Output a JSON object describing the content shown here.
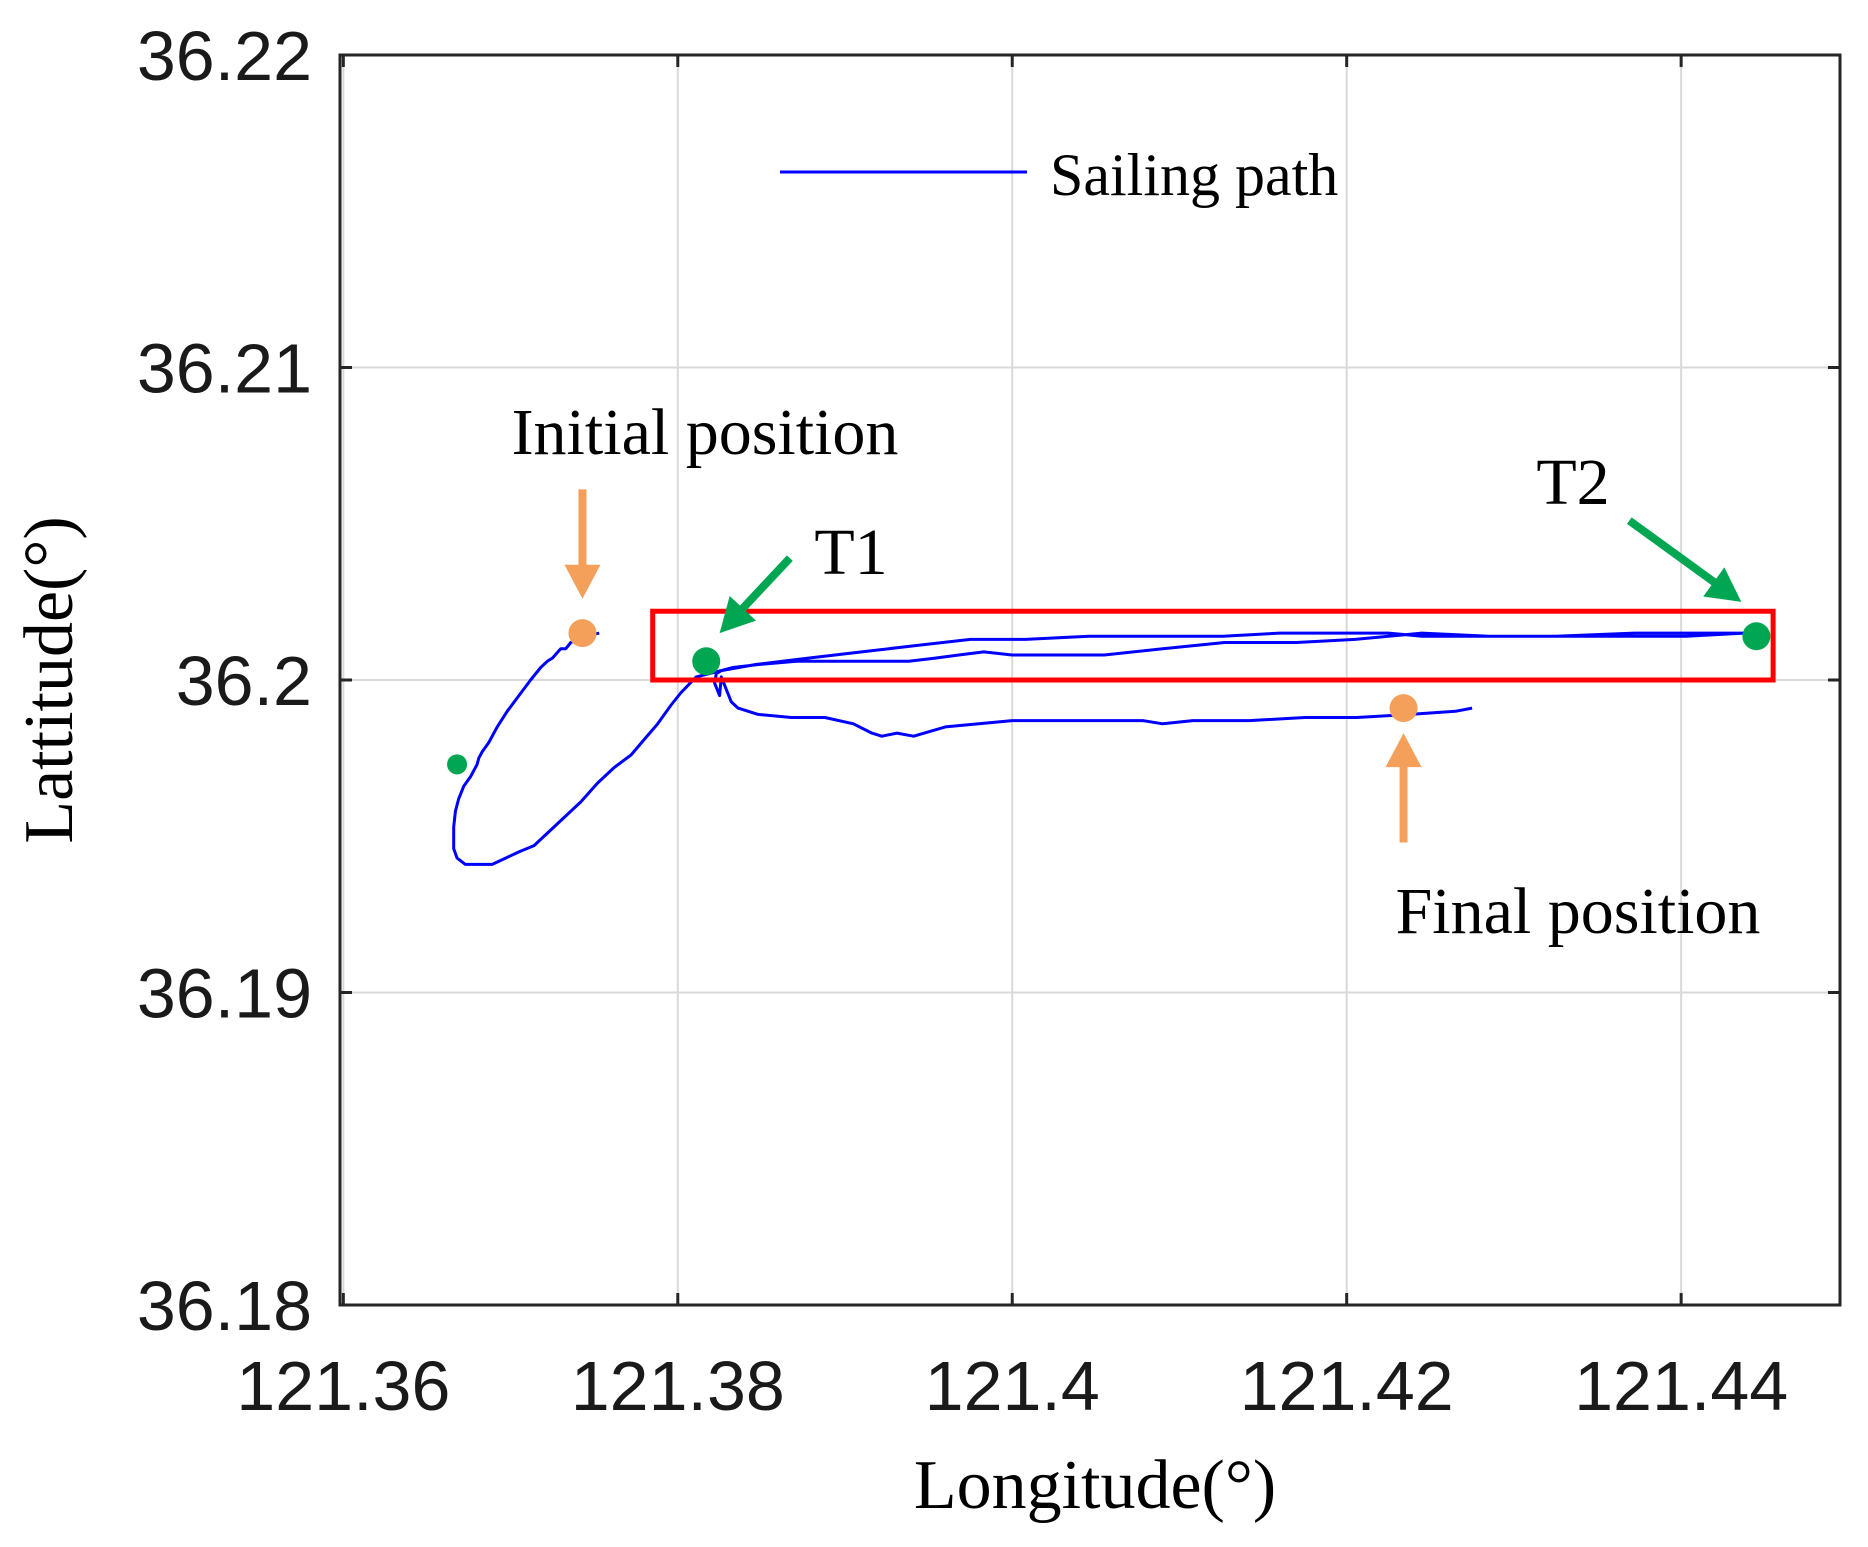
{
  "chart_data": {
    "type": "line",
    "xlabel": "Longitude(°)",
    "ylabel": "Lattitude(°)",
    "xlim": [
      121.3598,
      121.4495
    ],
    "ylim": [
      36.18,
      36.22
    ],
    "x_ticks": [
      121.36,
      121.38,
      121.4,
      121.42,
      121.44
    ],
    "y_ticks": [
      36.18,
      36.19,
      36.2,
      36.21,
      36.22
    ],
    "x_tick_labels": [
      "121.36",
      "121.38",
      "121.4",
      "121.42",
      "121.44"
    ],
    "y_tick_labels": [
      "36.18",
      "36.19",
      "36.2",
      "36.21",
      "36.22"
    ],
    "grid": true,
    "legend": {
      "position": "top-center",
      "entries": [
        {
          "label": "Sailing path",
          "color": "#0000ff"
        }
      ]
    },
    "series": [
      {
        "name": "Sailing path",
        "color": "#0000ff",
        "x": [
          121.3753,
          121.3745,
          121.3736,
          121.3733,
          121.373,
          121.3725,
          121.3722,
          121.3718,
          121.3712,
          121.3705,
          121.3698,
          121.3692,
          121.3687,
          121.3683,
          121.3681,
          121.368,
          121.3678,
          121.3676,
          121.3672,
          121.3669,
          121.3667,
          121.3666,
          121.3666,
          121.3668,
          121.3673,
          121.3681,
          121.3689,
          121.3697,
          121.3705,
          121.3714,
          121.3722,
          121.3732,
          121.3742,
          121.3752,
          121.3762,
          121.3772,
          121.378,
          121.3788,
          121.3796,
          121.3802,
          121.3811,
          121.3826,
          121.3847,
          121.3878,
          121.391,
          121.3942,
          121.3975,
          121.4008,
          121.4046,
          121.4086,
          121.4126,
          121.416,
          121.4195,
          121.4225,
          121.4245,
          121.4268,
          121.4292,
          121.4316,
          121.4343,
          121.4372,
          121.4403,
          121.4438,
          121.4412,
          121.4372,
          121.4325,
          121.4285,
          121.4245,
          121.4205,
          121.417,
          121.4127,
          121.409,
          121.4055,
          121.4023,
          121.4,
          121.3983,
          121.3968,
          121.3954,
          121.3938,
          121.3918,
          121.3895,
          121.3871,
          121.3849,
          121.3833,
          121.3826,
          121.3823,
          121.3822,
          121.3825,
          121.3826,
          121.3829,
          121.3832,
          121.3836,
          121.3848,
          121.3868,
          121.3888,
          121.3905,
          121.3916,
          121.3922,
          121.3931,
          121.3941,
          121.396,
          121.398,
          121.4,
          121.403,
          121.4058,
          121.4078,
          121.409,
          121.4108,
          121.4142,
          121.4175,
          121.4206,
          121.4238,
          121.4265,
          121.4275
        ],
        "y": [
          36.2015,
          36.2014,
          36.2012,
          36.201,
          36.201,
          36.2007,
          36.2006,
          36.2004,
          36.2,
          36.1995,
          36.199,
          36.1985,
          36.198,
          36.1977,
          36.1975,
          36.1973,
          36.1971,
          36.1969,
          36.1966,
          36.1962,
          36.1958,
          36.1953,
          36.1946,
          36.1943,
          36.1941,
          36.1941,
          36.1941,
          36.1943,
          36.1945,
          36.1947,
          36.1951,
          36.1956,
          36.1961,
          36.1967,
          36.1972,
          36.1976,
          36.1981,
          36.1986,
          36.1992,
          36.1996,
          36.2001,
          36.2003,
          36.2005,
          36.2007,
          36.2009,
          36.2011,
          36.2013,
          36.2013,
          36.2014,
          36.2014,
          36.2014,
          36.2015,
          36.2015,
          36.2015,
          36.2014,
          36.2014,
          36.2014,
          36.2014,
          36.2014,
          36.2014,
          36.2014,
          36.2015,
          36.2015,
          36.2015,
          36.2014,
          36.2014,
          36.2015,
          36.2013,
          36.2012,
          36.2012,
          36.201,
          36.2008,
          36.2008,
          36.2008,
          36.2009,
          36.2008,
          36.2007,
          36.2006,
          36.2006,
          36.2006,
          36.2006,
          36.2005,
          36.2004,
          36.2003,
          36.2002,
          36.1999,
          36.1995,
          36.2001,
          36.1997,
          36.1993,
          36.1991,
          36.1989,
          36.1988,
          36.1988,
          36.1986,
          36.1983,
          36.1982,
          36.1983,
          36.1982,
          36.1985,
          36.1986,
          36.1987,
          36.1987,
          36.1987,
          36.1987,
          36.1986,
          36.1987,
          36.1987,
          36.1988,
          36.1988,
          36.1989,
          36.199,
          36.1991
        ]
      }
    ],
    "markers": [
      {
        "name": "initial-position-point",
        "x": 121.3743,
        "y": 36.2015,
        "color": "#f5a05a",
        "size": "large"
      },
      {
        "name": "final-position-point",
        "x": 121.4234,
        "y": 36.1991,
        "color": "#f5a05a",
        "size": "large"
      },
      {
        "name": "t1-point",
        "x": 121.3817,
        "y": 36.2006,
        "color": "#00a651",
        "size": "large"
      },
      {
        "name": "t2-point",
        "x": 121.4445,
        "y": 36.2014,
        "color": "#00a651",
        "size": "large"
      },
      {
        "name": "small-green-point",
        "x": 121.3668,
        "y": 36.1973,
        "color": "#00a651",
        "size": "small"
      }
    ],
    "highlight_box": {
      "x": [
        121.3785,
        121.4455
      ],
      "y": [
        36.2,
        36.2022
      ],
      "color": "#ff0000"
    },
    "annotations": [
      {
        "name": "initial-position-label",
        "text": "Initial position",
        "x": 121.3713,
        "y": 36.2078
      },
      {
        "name": "final-position-label",
        "text": "Final position",
        "x": 121.4238,
        "y": 36.1923
      },
      {
        "name": "t1-label",
        "text": "T1",
        "x": 121.3876,
        "y": 36.2041
      },
      {
        "name": "t2-label",
        "text": "T2",
        "x": 121.4388,
        "y": 36.2058
      }
    ],
    "arrows": [
      {
        "name": "initial-position-arrow",
        "color": "#f5a05a",
        "from": [
          121.3743,
          36.2061
        ],
        "to": [
          121.3743,
          36.2026
        ]
      },
      {
        "name": "final-position-arrow",
        "color": "#f5a05a",
        "from": [
          121.4234,
          36.1948
        ],
        "to": [
          121.4234,
          36.1983
        ]
      },
      {
        "name": "t1-arrow",
        "color": "#00a651",
        "from": [
          121.3867,
          36.2039
        ],
        "to": [
          121.3825,
          36.2015
        ]
      },
      {
        "name": "t2-arrow",
        "color": "#00a651",
        "from": [
          121.4369,
          36.2051
        ],
        "to": [
          121.4436,
          36.2025
        ]
      }
    ]
  }
}
